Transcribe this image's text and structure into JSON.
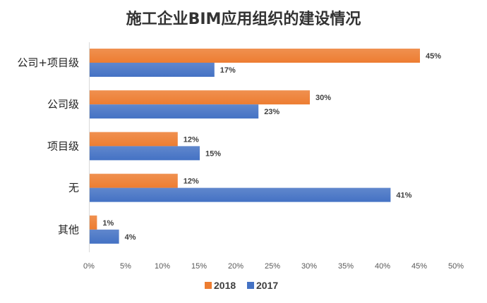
{
  "chart_data": {
    "type": "bar",
    "orientation": "horizontal",
    "title": "施工企业BIM应用组织的建设情况",
    "categories": [
      "公司+项目级",
      "公司级",
      "项目级",
      "无",
      "其他"
    ],
    "series": [
      {
        "name": "2018",
        "values": [
          45,
          30,
          12,
          12,
          1
        ],
        "color": "#ED7D31"
      },
      {
        "name": "2017",
        "values": [
          17,
          23,
          15,
          41,
          4
        ],
        "color": "#4472C4"
      }
    ],
    "xlim": [
      0,
      50
    ],
    "xticks": [
      "0%",
      "5%",
      "10%",
      "15%",
      "20%",
      "25%",
      "30%",
      "35%",
      "40%",
      "45%",
      "50%"
    ],
    "value_suffix": "%",
    "grid": false,
    "legend": "bottom"
  }
}
